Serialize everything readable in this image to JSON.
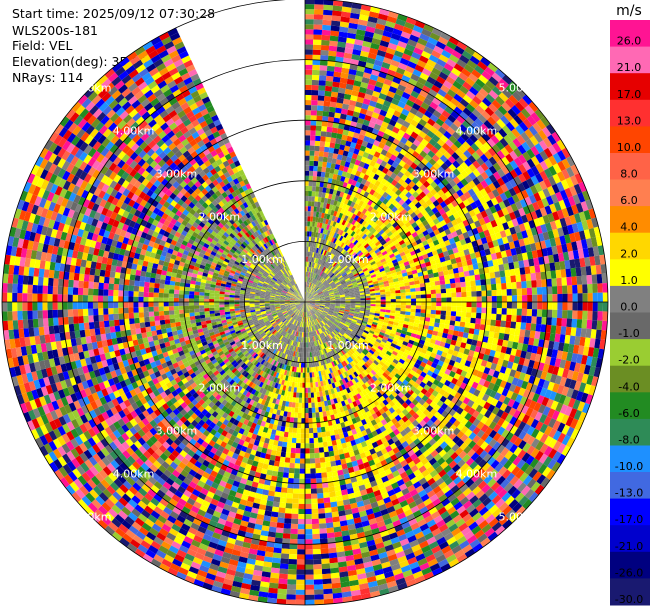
{
  "header": {
    "start_time": "Start time: 2025/09/12 07:30:28",
    "instrument": "WLS200s-181",
    "field": "Field: VEL",
    "elevation": "Elevation(deg): 35.00",
    "nrays": "NRays: 114"
  },
  "chart_data": {
    "type": "heatmap",
    "projection": "polar-ppi",
    "field": "VEL",
    "units": "m/s",
    "elevation_deg": 35.0,
    "n_rays": 114,
    "range_rings_km": [
      1.0,
      2.0,
      3.0,
      4.0,
      5.0
    ],
    "ring_labels": [
      "1.00km",
      "2.00km",
      "3.00km",
      "4.00km",
      "5.00km"
    ],
    "max_range_km": 5.0,
    "data_gap_azimuth_deg": [
      -25,
      0
    ],
    "colorbar": {
      "title": "m/s",
      "ticks": [
        "26.0",
        "21.0",
        "17.0",
        "13.0",
        "10.0",
        "8.0",
        "6.0",
        "4.0",
        "2.0",
        "1.0",
        "0.0",
        "-1.0",
        "-2.0",
        "-4.0",
        "-6.0",
        "-8.0",
        "-10.0",
        "-13.0",
        "-17.0",
        "-21.0",
        "-26.0",
        "-30.0"
      ],
      "colors": [
        "#ff1493",
        "#ff69b4",
        "#e60000",
        "#ff3030",
        "#ff4500",
        "#ff6347",
        "#ff7f50",
        "#ff8c00",
        "#ffd700",
        "#ffff00",
        "#808080",
        "#696969",
        "#9acd32",
        "#6b8e23",
        "#228b22",
        "#2e8b57",
        "#1e90ff",
        "#4169e1",
        "#0000ff",
        "#0000cd",
        "#000080",
        "#191970"
      ]
    }
  }
}
